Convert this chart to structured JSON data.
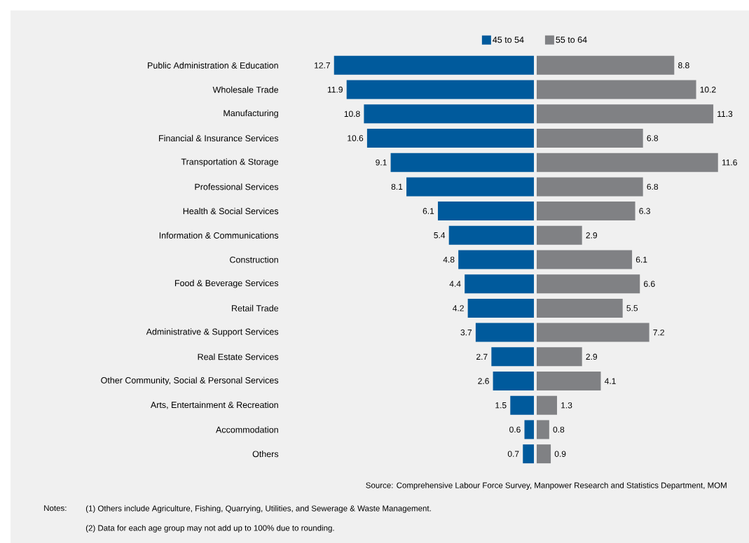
{
  "chart_data": [
    {
      "type": "bar",
      "orientation": "horizontal",
      "categories": [
        "Public Administration & Education",
        "Wholesale Trade",
        "Manufacturing",
        "Financial & Insurance Services",
        "Transportation & Storage",
        "Professional Services",
        "Health & Social Services",
        "Information & Communications",
        "Construction",
        "Food & Beverage Services",
        "Retail Trade",
        "Administrative & Support Services",
        "Real Estate Services",
        "Other Community, Social & Personal Services",
        "Arts, Entertainment & Recreation",
        "Accommodation",
        "Others"
      ],
      "series": [
        {
          "name": "45 to 54",
          "color": "#005a9c",
          "values": [
            12.7,
            11.9,
            10.8,
            10.6,
            9.1,
            8.1,
            6.1,
            5.4,
            4.8,
            4.4,
            4.2,
            3.7,
            2.7,
            2.6,
            1.5,
            0.6,
            0.7
          ]
        }
      ],
      "data_labels": true,
      "legend": "top",
      "tick_labels": "y",
      "annotations": [
        "Source: Comprehensive Labour Force Survey, Manpower Research and Statistics Department, MOM",
        "Notes:",
        "(1)  Others include Agriculture, Fishing, Quarrying, Utilities, and Sewerage & Waste Management.",
        "(2)  Data for each age group may not add up to 100% due to rounding."
      ]
    },
    {
      "type": "bar",
      "orientation": "horizontal",
      "series": [
        {
          "name": "55 to 64",
          "color": "#808184",
          "values": [
            8.8,
            10.2,
            11.3,
            6.8,
            11.6,
            6.8,
            6.3,
            2.9,
            6.1,
            6.6,
            5.5,
            7.2,
            2.9,
            4.1,
            1.3,
            0.8,
            0.9
          ]
        }
      ],
      "data_labels": true,
      "legend": "top",
      "tick_labels": false
    }
  ]
}
